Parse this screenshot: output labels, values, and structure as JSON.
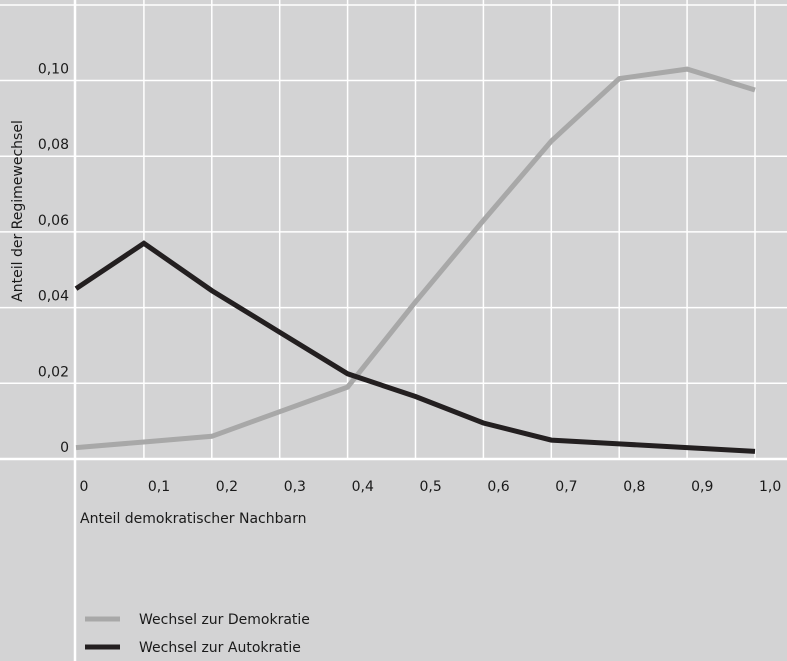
{
  "chart_data": {
    "type": "line",
    "title": "",
    "xlabel": "Anteil demokratischer Nachbarn",
    "ylabel": "Anteil der Regimewechsel",
    "x": [
      0,
      0.1,
      0.2,
      0.3,
      0.4,
      0.5,
      0.6,
      0.7,
      0.8,
      0.9,
      1.0
    ],
    "x_tick_labels": [
      "0",
      "0,1",
      "0,2",
      "0,3",
      "0,4",
      "0,5",
      "0,6",
      "0,7",
      "0,8",
      "0,9",
      "1,0"
    ],
    "y_ticks": [
      0,
      0.02,
      0.04,
      0.06,
      0.08,
      0.1
    ],
    "y_tick_labels": [
      "0",
      "0,02",
      "0,04",
      "0,06",
      "0,08",
      "0,10"
    ],
    "xlim": [
      0,
      1.0
    ],
    "ylim": [
      0,
      0.12
    ],
    "grid": true,
    "legend_position": "bottom-left",
    "series": [
      {
        "name": "Wechsel zur Demokratie",
        "color": "#a8a8a8",
        "values": [
          0.003,
          0.0045,
          0.006,
          0.0125,
          0.019,
          0.0415,
          0.063,
          0.084,
          0.1005,
          0.103,
          0.0975
        ]
      },
      {
        "name": "Wechsel zur Autokratie",
        "color": "#231f20",
        "values": [
          0.045,
          0.057,
          0.0445,
          0.0335,
          0.0225,
          0.0165,
          0.0095,
          0.005,
          0.004,
          0.003,
          0.002
        ]
      }
    ]
  }
}
